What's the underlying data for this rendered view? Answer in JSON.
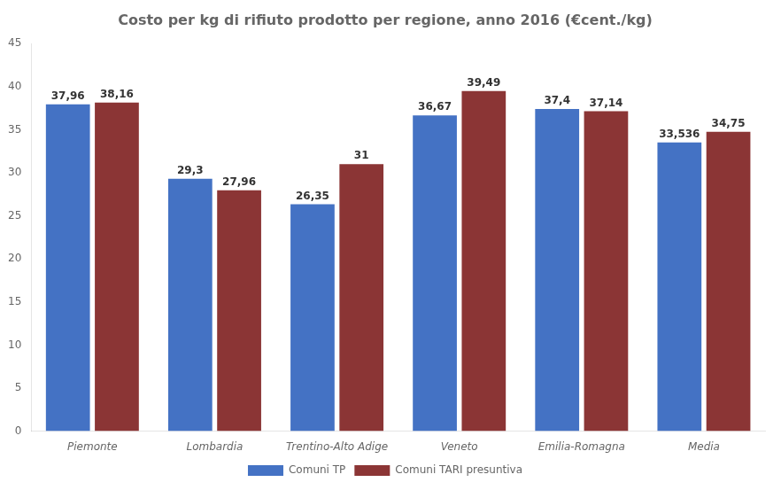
{
  "chart_data": {
    "type": "bar",
    "title": "Costo per kg di rifiuto prodotto per regione, anno 2016 (€cent./kg)",
    "categories": [
      "Piemonte",
      "Lombardia",
      "Trentino-Alto Adige",
      "Veneto",
      "Emilia-Romagna",
      "Media"
    ],
    "series": [
      {
        "name": "Comuni TP",
        "color": "#4472C4",
        "values": [
          37.96,
          29.3,
          26.35,
          36.67,
          37.4,
          33.536
        ],
        "value_labels": [
          "37,96",
          "29,3",
          "26,35",
          "36,67",
          "37,4",
          "33,536"
        ]
      },
      {
        "name": "Comuni TARI presuntiva",
        "color": "#8B3535",
        "values": [
          38.16,
          27.96,
          31.0,
          39.49,
          37.14,
          34.75
        ],
        "value_labels": [
          "38,16",
          "27,96",
          "31",
          "39,49",
          "37,14",
          "34,75"
        ]
      }
    ],
    "ylim": [
      0,
      45
    ],
    "yticks": [
      0,
      5,
      10,
      15,
      20,
      25,
      30,
      35,
      40,
      45
    ],
    "grid": false,
    "legend": "bottom",
    "data_labels": true
  }
}
